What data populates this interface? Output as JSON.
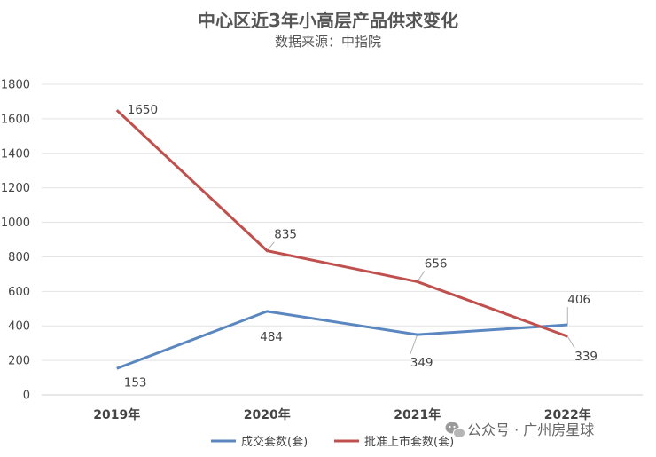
{
  "chart_data": {
    "type": "line",
    "title": "中心区近3年小高层产品供求变化",
    "subtitle": "数据来源：中指院",
    "categories": [
      "2019年",
      "2020年",
      "2021年",
      "2022年"
    ],
    "ylim": [
      0,
      1800
    ],
    "yticks": [
      0,
      200,
      400,
      600,
      800,
      1000,
      1200,
      1400,
      1600,
      1800
    ],
    "grid": true,
    "legend_position": "bottom",
    "series": [
      {
        "name": "成交套数(套)",
        "color": "#5b87c0",
        "values": [
          153,
          484,
          349,
          406
        ]
      },
      {
        "name": "批准上市套数(套)",
        "color": "#c0504d",
        "values": [
          1650,
          835,
          656,
          339
        ]
      }
    ]
  },
  "watermark": {
    "text": "公众号 · 广州房星球",
    "icon": "wechat-icon"
  }
}
